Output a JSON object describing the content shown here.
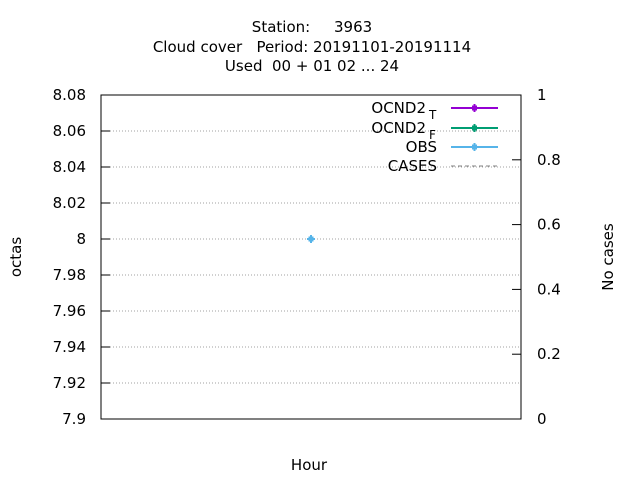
{
  "header": {
    "station_line": "Station:     3963",
    "period_line": "Cloud cover   Period: 20191101-20191114",
    "used_line": "Used  00 + 01 02 ... 24"
  },
  "chart_data": {
    "type": "line",
    "title": "Station:     3963\nCloud cover   Period: 20191101-20191114\nUsed  00 + 01 02 ... 24",
    "xlabel": "Hour",
    "ylabel": "octas",
    "y2label": "No cases",
    "ylim": [
      7.9,
      8.08
    ],
    "y2lim": [
      0,
      1
    ],
    "y_ticks": [
      "7.9",
      "7.92",
      "7.94",
      "7.96",
      "7.98",
      "8",
      "8.02",
      "8.04",
      "8.06",
      "8.08"
    ],
    "y2_ticks": [
      "0",
      "0.2",
      "0.4",
      "0.6",
      "0.8",
      "1"
    ],
    "grid": true,
    "legend_position": "top-right",
    "series": [
      {
        "name": "OCND2",
        "subscript": "T",
        "color": "#9400d3",
        "style": "solid-points",
        "points": []
      },
      {
        "name": "OCND2",
        "subscript": "F",
        "color": "#009e73",
        "style": "solid-points",
        "points": []
      },
      {
        "name": "OBS",
        "subscript": "",
        "color": "#56b4e9",
        "style": "solid-points",
        "points": [
          {
            "x": 0,
            "y": 8
          }
        ]
      },
      {
        "name": "CASES",
        "subscript": "",
        "color": "#808080",
        "style": "dashed",
        "points": []
      }
    ]
  }
}
